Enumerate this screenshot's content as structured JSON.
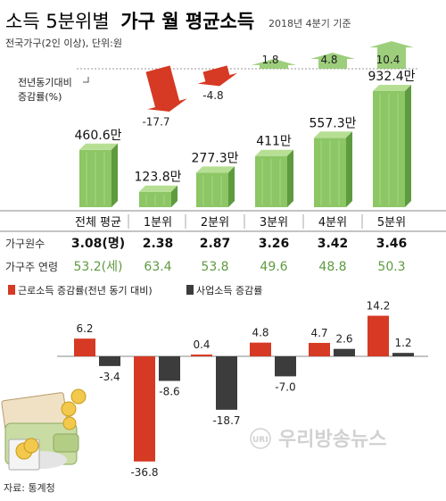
{
  "header": {
    "title_light": "소득 5분위별",
    "title_bold": "가구 월 평균소득",
    "period": "2018년 4분기 기준",
    "subtitle": "전국가구(2인 이상), 단위:원"
  },
  "change_label": {
    "line1": "전년동기대비",
    "line2": "증감률(%)"
  },
  "groups": [
    "전체 평균",
    "1분위",
    "2분위",
    "3분위",
    "4분위",
    "5분위"
  ],
  "table": {
    "rows": [
      {
        "label": "가구원수",
        "values": [
          "3.08(명)",
          "2.38",
          "2.87",
          "3.26",
          "3.42",
          "3.46"
        ]
      },
      {
        "label": "가구주 연령",
        "values": [
          "53.2(세)",
          "63.4",
          "53.8",
          "49.6",
          "48.8",
          "50.3"
        ]
      }
    ]
  },
  "source": "자료: 통계청",
  "watermark": {
    "text": "우리방송뉴스",
    "mark": "URI"
  },
  "colors": {
    "green": "#8cc665",
    "green_dark": "#5e9a3f",
    "red": "#d63a24",
    "dark": "#3c3c3c",
    "age_text": "#5e9a3f"
  },
  "chart_data": [
    {
      "type": "bar",
      "title": "가구 월 평균소득",
      "categories": [
        "전체 평균",
        "1분위",
        "2분위",
        "3분위",
        "4분위",
        "5분위"
      ],
      "values": [
        460.6,
        123.8,
        277.3,
        411,
        557.3,
        932.4
      ],
      "value_labels": [
        "460.6만",
        "123.8만",
        "277.3만",
        "411만",
        "557.3만",
        "932.4만"
      ]
    },
    {
      "type": "bar",
      "title": "전년동기대비 증감률(%)",
      "categories": [
        "1분위",
        "2분위",
        "3분위",
        "4분위",
        "5분위"
      ],
      "values": [
        -17.7,
        -4.8,
        1.8,
        4.8,
        10.4
      ],
      "value_labels": [
        "-17.7",
        "-4.8",
        "1.8",
        "4.8",
        "10.4"
      ]
    },
    {
      "type": "bar",
      "categories": [
        "1분위",
        "2분위",
        "3분위",
        "4분위",
        "5분위"
      ],
      "series": [
        {
          "name": "근로소득 증감률(전년 동기 대비)",
          "values": [
            -36.8,
            0.4,
            4.8,
            4.7,
            14.2
          ],
          "labels": [
            "-36.8",
            "0.4",
            "4.8",
            "4.7",
            "14.2"
          ]
        },
        {
          "name": "사업소득 증감률",
          "values": [
            -8.6,
            -18.7,
            -7.0,
            2.6,
            1.2
          ],
          "labels": [
            "-8.6",
            "-18.7",
            "-7.0",
            "2.6",
            "1.2"
          ]
        }
      ],
      "extra": {
        "category": "전체 평균",
        "values": [
          6.2,
          -3.4
        ],
        "labels": [
          "6.2",
          "-3.4"
        ]
      },
      "legend": "top-left"
    }
  ]
}
